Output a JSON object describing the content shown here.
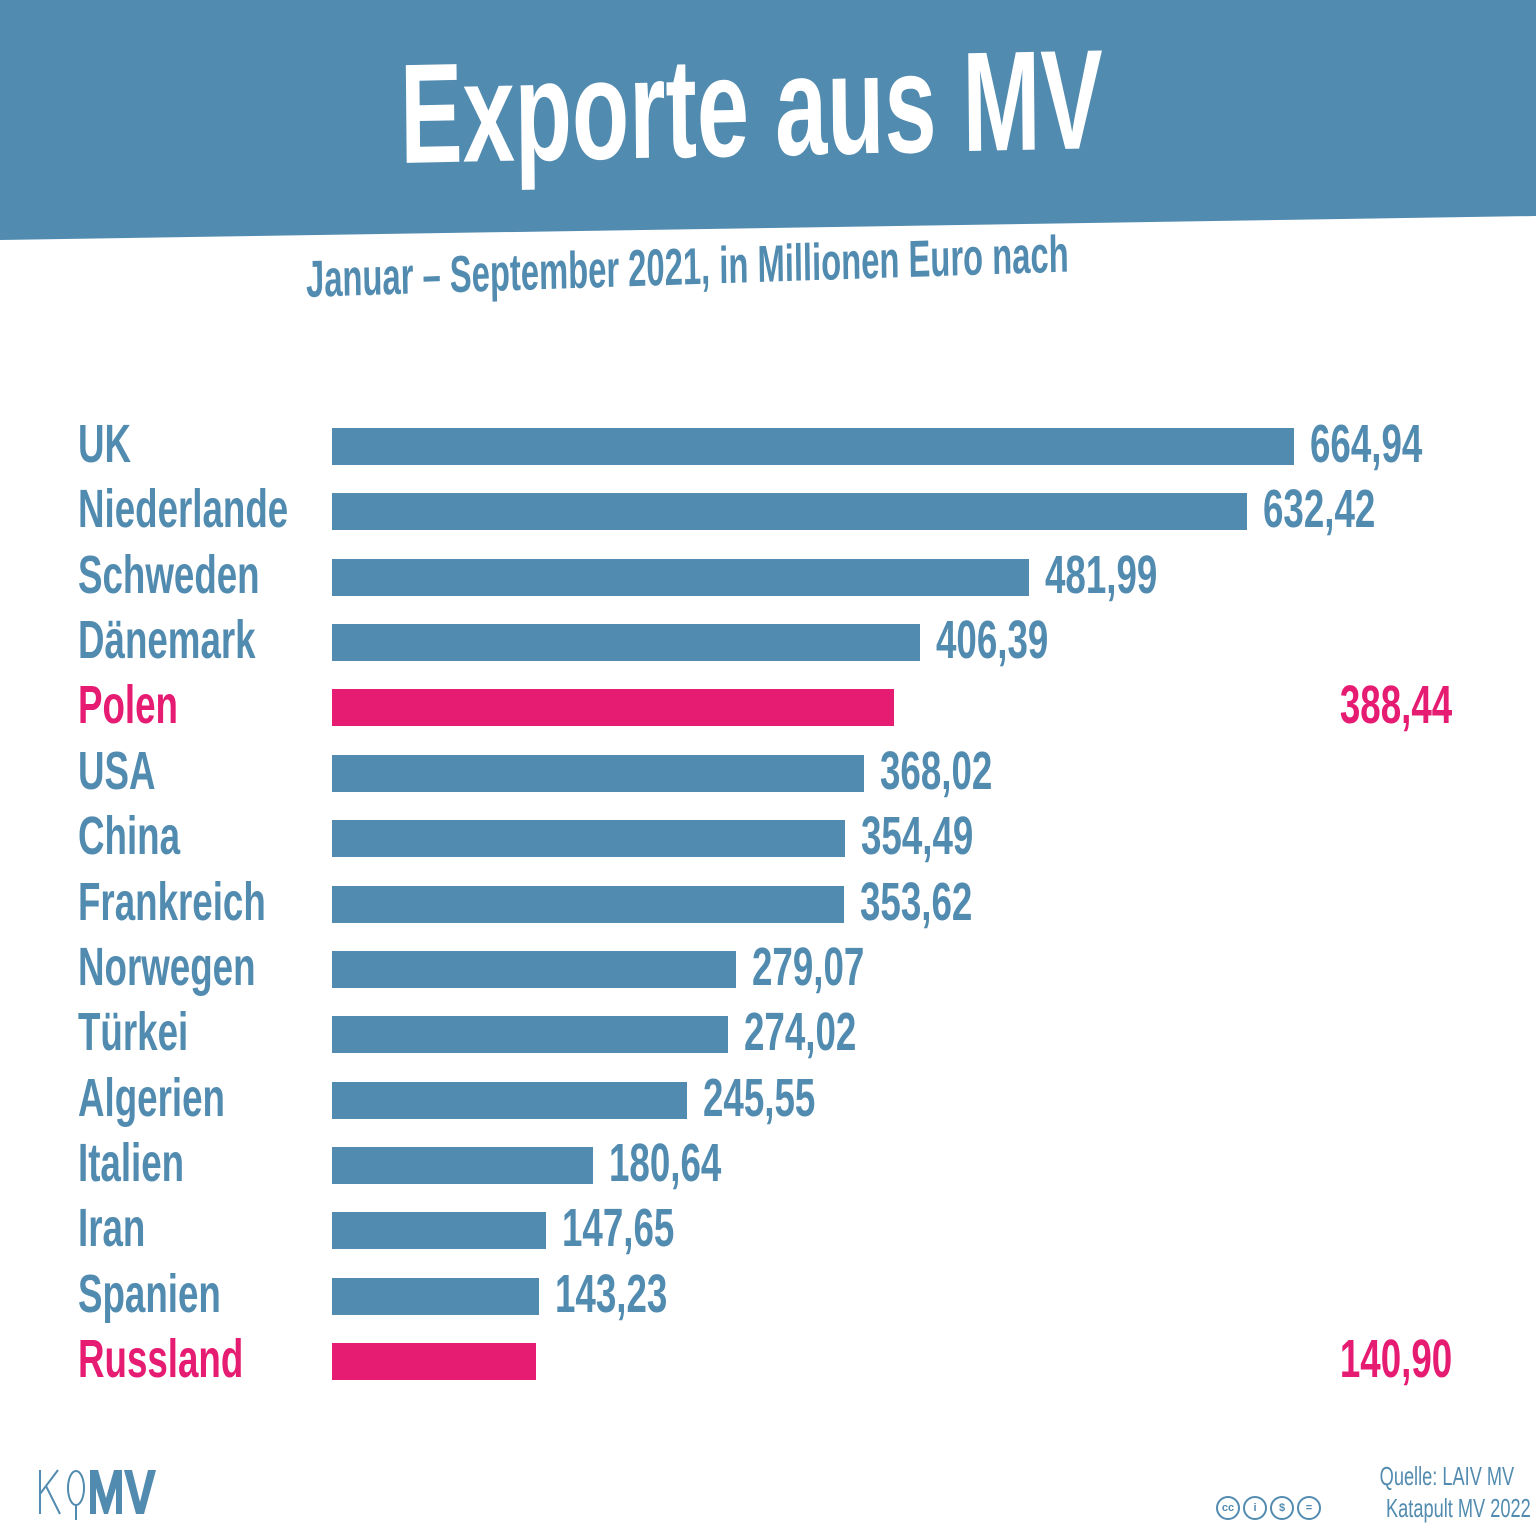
{
  "header": {
    "title": "Exporte aus MV",
    "subtitle": "Januar – September 2021, in Millionen Euro nach"
  },
  "colors": {
    "primary": "#528bb0",
    "highlight": "#e61b72",
    "background": "#ffffff"
  },
  "chart_data": {
    "type": "bar",
    "orientation": "horizontal",
    "title": "Exporte aus MV",
    "subtitle": "Januar – September 2021, in Millionen Euro nach",
    "categories": [
      "UK",
      "Niederlande",
      "Schweden",
      "Dänemark",
      "Polen",
      "USA",
      "China",
      "Frankreich",
      "Norwegen",
      "Türkei",
      "Algerien",
      "Italien",
      "Iran",
      "Spanien",
      "Russland"
    ],
    "values": [
      664.94,
      632.42,
      481.99,
      406.39,
      388.44,
      368.02,
      354.49,
      353.62,
      279.07,
      274.02,
      245.55,
      180.64,
      147.65,
      143.23,
      140.9
    ],
    "value_labels": [
      "664,94",
      "632,42",
      "481,99",
      "406,39",
      "388,44",
      "368,02",
      "354,49",
      "353,62",
      "279,07",
      "274,02",
      "245,55",
      "180,64",
      "147,65",
      "143,23",
      "140,90"
    ],
    "highlighted": [
      "Polen",
      "Russland"
    ],
    "xlim": [
      0,
      664.94
    ],
    "grid": false,
    "legend": "none"
  },
  "footer": {
    "logo": "KMV",
    "source": "Quelle: LAIV MV",
    "license_icons": [
      "cc-icon",
      "by-icon",
      "nc-icon",
      "nd-icon"
    ],
    "copyright": "Katapult MV 2022"
  }
}
